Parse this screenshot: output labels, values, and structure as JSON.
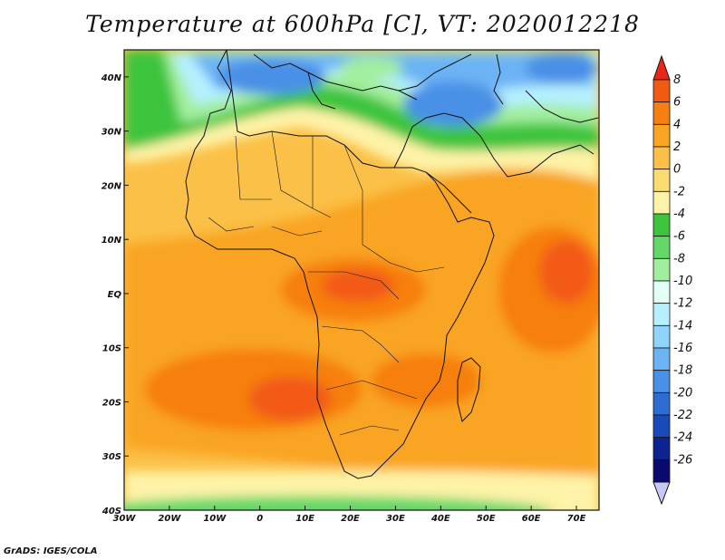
{
  "title": "Temperature at 600hPa [C], VT: 2020012218",
  "footer": "GrADS: IGES/COLA",
  "map": {
    "lon_range": [
      -30,
      75
    ],
    "lat_range": [
      -40,
      45
    ],
    "x_ticks": [
      {
        "lon": -30,
        "label": "30W"
      },
      {
        "lon": -20,
        "label": "20W"
      },
      {
        "lon": -10,
        "label": "10W"
      },
      {
        "lon": 0,
        "label": "0"
      },
      {
        "lon": 10,
        "label": "10E"
      },
      {
        "lon": 20,
        "label": "20E"
      },
      {
        "lon": 30,
        "label": "30E"
      },
      {
        "lon": 40,
        "label": "40E"
      },
      {
        "lon": 50,
        "label": "50E"
      },
      {
        "lon": 60,
        "label": "60E"
      },
      {
        "lon": 70,
        "label": "70E"
      }
    ],
    "y_ticks": [
      {
        "lat": 40,
        "label": "40N"
      },
      {
        "lat": 30,
        "label": "30N"
      },
      {
        "lat": 20,
        "label": "20N"
      },
      {
        "lat": 10,
        "label": "10N"
      },
      {
        "lat": 0,
        "label": "EQ"
      },
      {
        "lat": -10,
        "label": "10S"
      },
      {
        "lat": -20,
        "label": "20S"
      },
      {
        "lat": -30,
        "label": "30S"
      },
      {
        "lat": -40,
        "label": "40S"
      }
    ]
  },
  "colorbar": {
    "labels": [
      "8",
      "6",
      "4",
      "2",
      "0",
      "-2",
      "-4",
      "-6",
      "-8",
      "-10",
      "-12",
      "-14",
      "-16",
      "-18",
      "-20",
      "-22",
      "-24",
      "-26"
    ],
    "colors": [
      "#e8261a",
      "#f25a12",
      "#f77f11",
      "#f9a422",
      "#fbc047",
      "#fbdc72",
      "#fef3a8",
      "#3dc43d",
      "#63d867",
      "#a3ee9e",
      "#e2fff6",
      "#b6f0ff",
      "#8fd4fb",
      "#6cb3f5",
      "#4a90e6",
      "#2d6cd2",
      "#1a4ab9",
      "#0c2391",
      "#0a0a6e",
      "#c8c8f8"
    ]
  }
}
